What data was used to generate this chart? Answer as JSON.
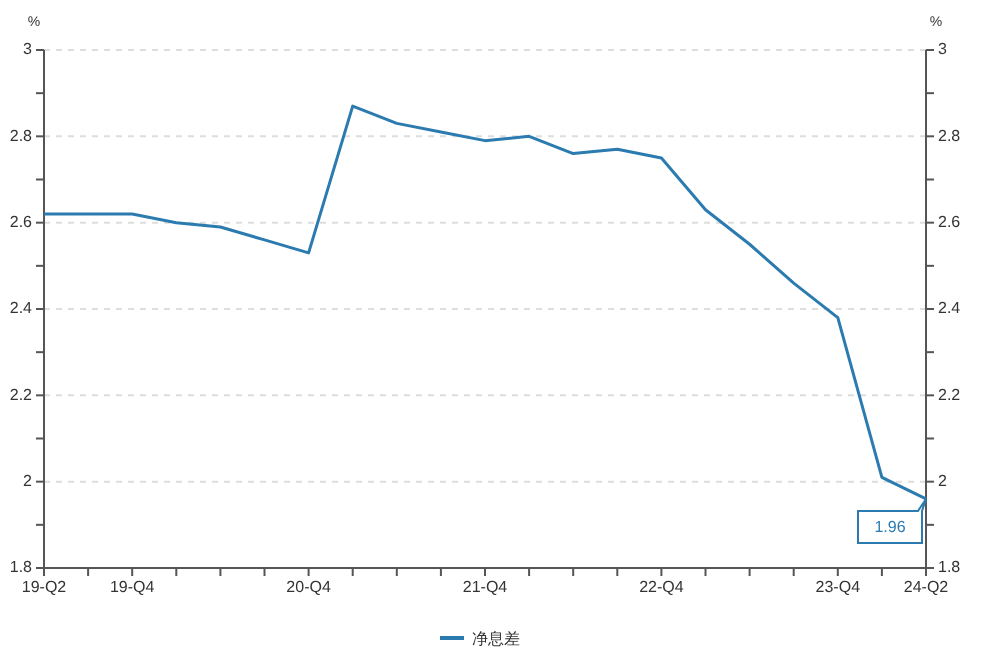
{
  "chart_data": {
    "type": "line",
    "ylabel": "%",
    "y2label": "%",
    "categories": [
      "19-Q2",
      null,
      "19-Q4",
      null,
      null,
      null,
      "20-Q4",
      null,
      null,
      null,
      "21-Q4",
      null,
      null,
      null,
      "22-Q4",
      null,
      null,
      null,
      "23-Q4",
      null,
      "24-Q2"
    ],
    "series": [
      {
        "name": "净息差",
        "color": "#2b7bb0",
        "values": [
          2.62,
          2.62,
          2.62,
          2.6,
          2.59,
          2.56,
          2.53,
          2.87,
          2.83,
          2.81,
          2.79,
          2.8,
          2.76,
          2.77,
          2.75,
          2.63,
          2.55,
          2.46,
          2.38,
          2.01,
          1.96
        ],
        "value_labels": [
          null,
          null,
          null,
          null,
          null,
          null,
          null,
          null,
          null,
          null,
          null,
          null,
          null,
          null,
          null,
          null,
          null,
          null,
          null,
          null,
          "1.96"
        ]
      }
    ],
    "ylim": [
      1.8,
      3
    ],
    "yticks": [
      1.8,
      {
        "value": 1.9,
        "label": null
      },
      2,
      {
        "value": 2.1,
        "label": null
      },
      2.2,
      {
        "value": 2.3,
        "label": null
      },
      2.4,
      {
        "value": 2.5,
        "label": null
      },
      2.6,
      {
        "value": 2.7,
        "label": null
      },
      2.8,
      {
        "value": 2.9,
        "label": null
      },
      3
    ],
    "y2lim": [
      1.8,
      3
    ],
    "y2ticks": [
      1.8,
      {
        "value": 1.9,
        "label": null
      },
      2,
      {
        "value": 2.1,
        "label": null
      },
      2.2,
      {
        "value": 2.3,
        "label": null
      },
      2.4,
      {
        "value": 2.5,
        "label": null
      },
      2.6,
      {
        "value": 2.7,
        "label": null
      },
      2.8,
      {
        "value": 2.9,
        "label": null
      },
      3
    ],
    "grid": "y",
    "legend": "bottom",
    "line_style": "solid",
    "marker": "none"
  }
}
